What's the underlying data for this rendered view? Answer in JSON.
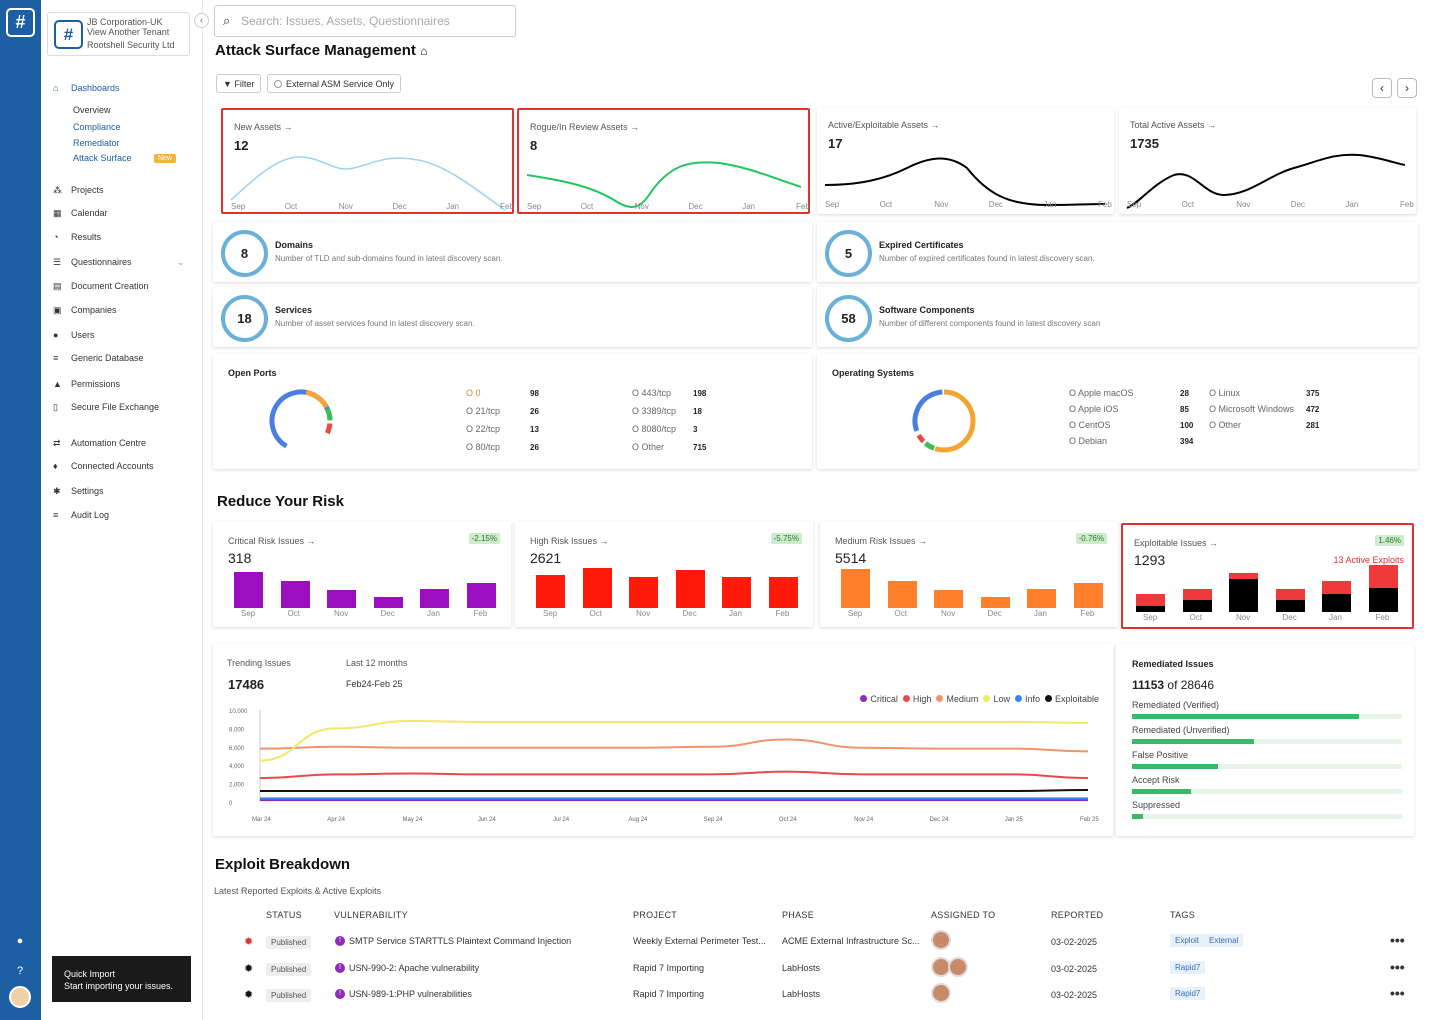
{
  "app": {
    "logo": "#"
  },
  "tenant": {
    "line1": "JB Corporation-UK",
    "line2": "View Another Tenant",
    "line3": "Rootshell Security Ltd"
  },
  "sidebar": {
    "items": [
      {
        "label": "Dashboards",
        "icon": "home-icon"
      },
      {
        "label": "Projects",
        "icon": "projects-icon"
      },
      {
        "label": "Calendar",
        "icon": "calendar-icon"
      },
      {
        "label": "Results",
        "icon": "pie-icon"
      },
      {
        "label": "Questionnaires",
        "icon": "list-icon"
      },
      {
        "label": "Document Creation",
        "icon": "document-icon"
      },
      {
        "label": "Companies",
        "icon": "briefcase-icon"
      },
      {
        "label": "Users",
        "icon": "user-icon"
      },
      {
        "label": "Generic Database",
        "icon": "database-icon"
      },
      {
        "label": "Permissions",
        "icon": "lock-icon"
      },
      {
        "label": "Secure File Exchange",
        "icon": "file-icon"
      },
      {
        "label": "Automation Centre",
        "icon": "automation-icon"
      },
      {
        "label": "Connected Accounts",
        "icon": "plug-icon"
      },
      {
        "label": "Settings",
        "icon": "gear-icon"
      },
      {
        "label": "Audit Log",
        "icon": "menu-icon"
      }
    ],
    "sub": [
      "Overview",
      "Compliance",
      "Remediator",
      "Attack Surface"
    ],
    "new_badge": "New"
  },
  "quick_import": {
    "title": "Quick Import",
    "text": "Start importing your issues."
  },
  "search": {
    "placeholder": "Search: Issues, Assets, Questionnaires"
  },
  "page_title": "Attack Surface Management",
  "filter": {
    "label": "Filter",
    "checkbox": "External ASM Service Only"
  },
  "months": [
    "Sep",
    "Oct",
    "Nov",
    "Dec",
    "Jan",
    "Feb"
  ],
  "asset_cards": [
    {
      "label": "New Assets →",
      "value": "12",
      "color": "#9fd3ea",
      "highlighted": true
    },
    {
      "label": "Rogue/In Review Assets →",
      "value": "8",
      "color": "#22c55e",
      "highlighted": true
    },
    {
      "label": "Active/Exploitable Assets →",
      "value": "17",
      "color": "#000000",
      "highlighted": false
    },
    {
      "label": "Total Active Assets →",
      "value": "1735",
      "color": "#000000",
      "highlighted": false
    }
  ],
  "stat_cards": [
    {
      "value": "8",
      "title": "Domains",
      "desc": "Number of TLD and sub-domains found in latest discovery scan."
    },
    {
      "value": "5",
      "title": "Expired Certificates",
      "desc": "Number of expired certificates found in latest discovery scan."
    },
    {
      "value": "18",
      "title": "Services",
      "desc": "Number of asset services found in latest discovery scan."
    },
    {
      "value": "58",
      "title": "Software Components",
      "desc": "Number of different components found in latest discovery scan"
    }
  ],
  "open_ports": {
    "title": "Open Ports",
    "items": [
      {
        "label": "O 0",
        "value": "98"
      },
      {
        "label": "O 21/tcp",
        "value": "26"
      },
      {
        "label": "O 22/tcp",
        "value": "13"
      },
      {
        "label": "O 80/tcp",
        "value": "26"
      },
      {
        "label": "O 443/tcp",
        "value": "198"
      },
      {
        "label": "O 3389/tcp",
        "value": "18"
      },
      {
        "label": "O 8080/tcp",
        "value": "3"
      },
      {
        "label": "O Other",
        "value": "715"
      }
    ]
  },
  "operating_systems": {
    "title": "Operating Systems",
    "items": [
      {
        "label": "O Apple macOS",
        "value": "28"
      },
      {
        "label": "O Apple iOS",
        "value": "85"
      },
      {
        "label": "O CentOS",
        "value": "100"
      },
      {
        "label": "O Debian",
        "value": "394"
      },
      {
        "label": "O Linux",
        "value": "375"
      },
      {
        "label": "O Microsoft Windows",
        "value": "472"
      },
      {
        "label": "O Other",
        "value": "281"
      }
    ]
  },
  "reduce_title": "Reduce Your Risk",
  "risk_cards": [
    {
      "label": "Critical Risk Issues →",
      "value": "318",
      "pct": "-2.15%",
      "color": "#9b0fc0"
    },
    {
      "label": "High Risk Issues →",
      "value": "2621",
      "pct": "-5.75%",
      "color": "#ff1a0a"
    },
    {
      "label": "Medium Risk Issues →",
      "value": "5514",
      "pct": "-0.76%",
      "color": "#ff7f2a"
    },
    {
      "label": "Exploitable Issues →",
      "value": "1293",
      "pct": "1.46%",
      "extra": "13 Active Exploits",
      "color": "#ee3a3a"
    }
  ],
  "trending": {
    "label": "Trending Issues",
    "value": "17486",
    "period_label": "Last 12 months",
    "period": "Feb24-Feb 25"
  },
  "remediated": {
    "title": "Remediated Issues",
    "count": "11153",
    "of": "of 28646",
    "bars": [
      {
        "label": "Remediated (Verified)",
        "fraction": 0.84
      },
      {
        "label": "Remediated (Unverified)",
        "fraction": 0.45
      },
      {
        "label": "False Positive",
        "fraction": 0.32
      },
      {
        "label": "Accept Risk",
        "fraction": 0.22
      },
      {
        "label": "Suppressed",
        "fraction": 0.04
      }
    ]
  },
  "chart_data": [
    {
      "type": "line",
      "title": "New Assets",
      "x": [
        "Sep",
        "Oct",
        "Nov",
        "Dec",
        "Jan",
        "Feb"
      ],
      "y_value": 12
    },
    {
      "type": "bar",
      "title": "Critical Risk Issues",
      "categories": [
        "Sep",
        "Oct",
        "Nov",
        "Dec",
        "Jan",
        "Feb"
      ],
      "values": [
        60,
        45,
        30,
        18,
        32,
        42
      ]
    },
    {
      "type": "bar",
      "title": "High Risk Issues",
      "categories": [
        "Sep",
        "Oct",
        "Nov",
        "Dec",
        "Jan",
        "Feb"
      ],
      "values": [
        55,
        66,
        52,
        64,
        52,
        52
      ]
    },
    {
      "type": "bar",
      "title": "Medium Risk Issues",
      "categories": [
        "Sep",
        "Oct",
        "Nov",
        "Dec",
        "Jan",
        "Feb"
      ],
      "values": [
        65,
        45,
        30,
        18,
        32,
        42
      ]
    },
    {
      "type": "bar",
      "title": "Exploitable Issues",
      "categories": [
        "Sep",
        "Oct",
        "Nov",
        "Dec",
        "Jan",
        "Feb"
      ],
      "series": [
        {
          "name": "Exploitable",
          "values": [
            10,
            20,
            55,
            20,
            30,
            40
          ]
        },
        {
          "name": "Active",
          "values": [
            20,
            18,
            10,
            18,
            22,
            38
          ]
        }
      ]
    },
    {
      "type": "line",
      "title": "Trending Issues",
      "x": [
        "Mar 24",
        "Apr 24",
        "May 24",
        "Jun 24",
        "Jul 24",
        "Aug 24",
        "Sep 24",
        "Oct 24",
        "Nov 24",
        "Dec 24",
        "Jan 25",
        "Feb 25"
      ],
      "ylim": [
        0,
        10000
      ],
      "yticks": [
        "10,000",
        "8,000",
        "6,000",
        "4,000",
        "2,000",
        "0"
      ],
      "series": [
        {
          "name": "Critical",
          "color": "#8e2bb8",
          "values": [
            200,
            200,
            200,
            200,
            200,
            200,
            200,
            200,
            200,
            200,
            200,
            200
          ]
        },
        {
          "name": "High",
          "color": "#e84a4a",
          "values": [
            2600,
            3000,
            3100,
            3000,
            3000,
            3000,
            3000,
            3300,
            3000,
            3000,
            3000,
            2600
          ]
        },
        {
          "name": "Medium",
          "color": "#f0956a",
          "values": [
            5800,
            6000,
            5900,
            5900,
            5900,
            5900,
            6000,
            6800,
            5900,
            5800,
            5800,
            5500
          ]
        },
        {
          "name": "Low",
          "color": "#f3e76a",
          "values": [
            4500,
            8000,
            8800,
            8700,
            8700,
            8700,
            8700,
            8700,
            8700,
            8700,
            8700,
            8600
          ]
        },
        {
          "name": "Info",
          "color": "#3b82f6",
          "values": [
            400,
            400,
            400,
            400,
            400,
            400,
            400,
            400,
            400,
            400,
            400,
            400
          ]
        },
        {
          "name": "Exploitable",
          "color": "#111111",
          "values": [
            1200,
            1200,
            1200,
            1200,
            1200,
            1200,
            1200,
            1200,
            1200,
            1200,
            1200,
            1300
          ]
        }
      ]
    }
  ],
  "exploits": {
    "title": "Exploit Breakdown",
    "subtitle": "Latest Reported Exploits & Active Exploits",
    "headers": [
      "STATUS",
      "VULNERABILITY",
      "PROJECT",
      "PHASE",
      "ASSIGNED TO",
      "REPORTED",
      "TAGS"
    ],
    "rows": [
      {
        "status": "Published",
        "vuln": "SMTP Service STARTTLS Plaintext Command Injection",
        "project": "Weekly External Perimeter Test...",
        "phase": "ACME External Infrastructure Sc...",
        "date": "03-02-2025",
        "tags": [
          "Exploit",
          "External"
        ]
      },
      {
        "status": "Published",
        "vuln": "USN-990-2: Apache vulnerability",
        "project": "Rapid 7 Importing",
        "phase": "LabHosts",
        "date": "03-02-2025",
        "tags": [
          "Rapid7"
        ]
      },
      {
        "status": "Published",
        "vuln": "USN-989-1:PHP vulnerabilities",
        "project": "Rapid 7 Importing",
        "phase": "LabHosts",
        "date": "03-02-2025",
        "tags": [
          "Rapid7"
        ]
      }
    ]
  }
}
